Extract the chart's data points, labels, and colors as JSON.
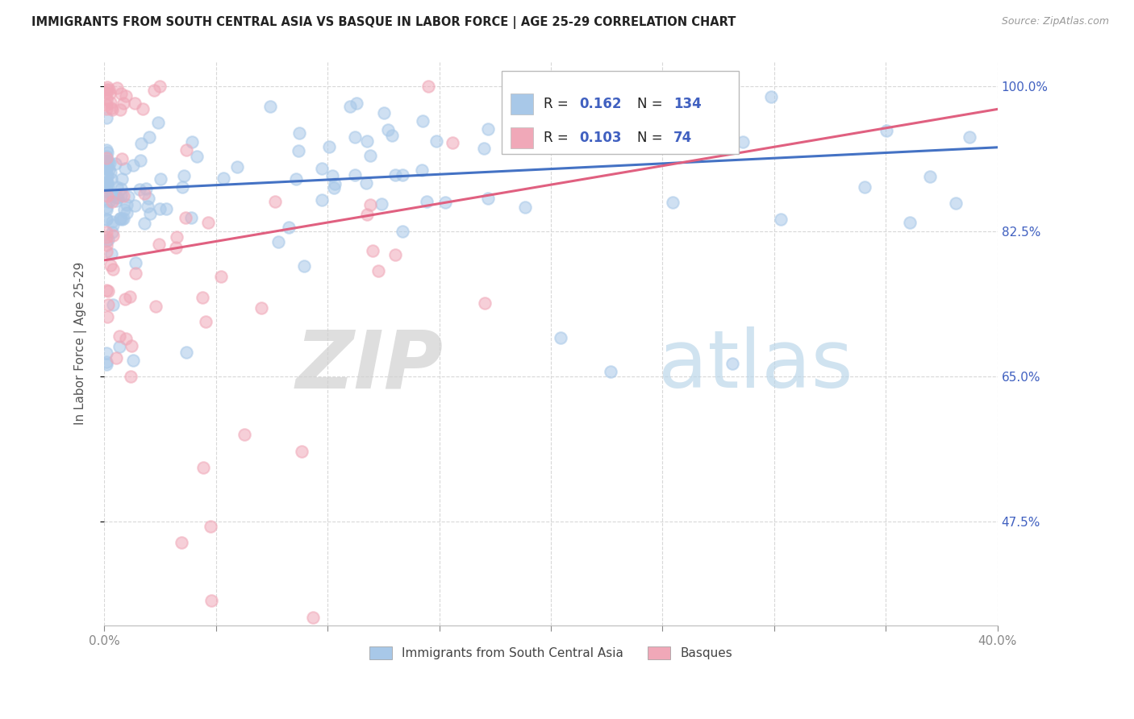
{
  "title": "IMMIGRANTS FROM SOUTH CENTRAL ASIA VS BASQUE IN LABOR FORCE | AGE 25-29 CORRELATION CHART",
  "source": "Source: ZipAtlas.com",
  "ylabel": "In Labor Force | Age 25-29",
  "xlim": [
    0.0,
    0.4
  ],
  "ylim": [
    0.35,
    1.03
  ],
  "xtick_vals": [
    0.0,
    0.05,
    0.1,
    0.15,
    0.2,
    0.25,
    0.3,
    0.35,
    0.4
  ],
  "xticklabels": [
    "0.0%",
    "",
    "",
    "",
    "",
    "",
    "",
    "",
    "40.0%"
  ],
  "ytick_right_vals": [
    0.475,
    0.65,
    0.825,
    1.0
  ],
  "ytick_right_labels": [
    "47.5%",
    "65.0%",
    "82.5%",
    "100.0%"
  ],
  "blue_R": "0.162",
  "blue_N": "134",
  "pink_R": "0.103",
  "pink_N": "74",
  "blue_scatter_color": "#a8c8e8",
  "pink_scatter_color": "#f0a8b8",
  "blue_line_color": "#4472c4",
  "pink_line_color": "#e06080",
  "legend_label_blue": "Immigrants from South Central Asia",
  "legend_label_pink": "Basques",
  "watermark_zip": "ZIP",
  "watermark_atlas": "atlas",
  "title_fontsize": 10.5,
  "axis_label_color": "#4060c0",
  "grid_color": "#d8d8d8",
  "title_color": "#222222",
  "source_color": "#999999",
  "blue_line_y0": 0.874,
  "blue_line_y1": 0.926,
  "pink_line_y0": 0.79,
  "pink_line_y1": 0.972
}
